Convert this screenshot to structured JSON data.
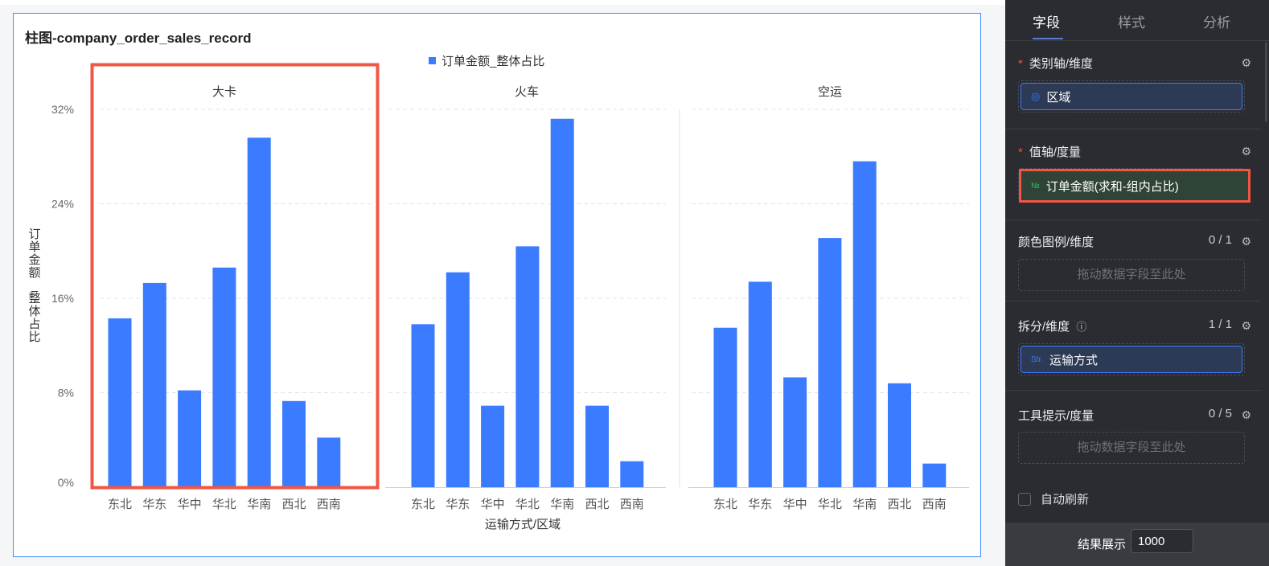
{
  "chart": {
    "title": "柱图-company_order_sales_record"
  },
  "chart_data": {
    "type": "bar",
    "legend": {
      "entries": [
        "订单金额_整体占比"
      ],
      "placement": "top"
    },
    "xlabel": "运输方式/区域",
    "ylabel": "订单金额_整体占比",
    "ylim": [
      0,
      32
    ],
    "yticks": [
      "0%",
      "8%",
      "16%",
      "24%",
      "32%"
    ],
    "grid": true,
    "color": "#3a7bff",
    "categories": [
      "东北",
      "华东",
      "华中",
      "华北",
      "华南",
      "西北",
      "西南"
    ],
    "facets": [
      {
        "name": "大卡",
        "values": [
          14.3,
          17.3,
          8.2,
          18.6,
          29.6,
          7.3,
          4.2
        ]
      },
      {
        "name": "火车",
        "values": [
          13.8,
          18.2,
          6.9,
          20.4,
          31.2,
          6.9,
          2.2
        ]
      },
      {
        "name": "空运",
        "values": [
          13.5,
          17.4,
          9.3,
          21.1,
          27.6,
          8.8,
          2.0
        ]
      }
    ]
  },
  "panel": {
    "tabs": [
      "字段",
      "样式",
      "分析"
    ],
    "category_axis": {
      "label": "类别轴/维度",
      "field": "区域",
      "icon": "location-icon"
    },
    "value_axis": {
      "label": "值轴/度量",
      "field": "订单金额(求和-组内占比)",
      "icon": "№"
    },
    "color_legend": {
      "label": "颜色图例/维度",
      "count": "0 / 1",
      "placeholder": "拖动数据字段至此处"
    },
    "split": {
      "label": "拆分/维度",
      "count": "1 / 1",
      "field": "运输方式",
      "icon": "Str."
    },
    "tooltip": {
      "label": "工具提示/度量",
      "count": "0 / 5",
      "placeholder": "拖动数据字段至此处"
    },
    "auto_refresh": {
      "label": "自动刷新",
      "checked": false
    },
    "result": {
      "label": "结果展示",
      "value": "1000"
    }
  }
}
